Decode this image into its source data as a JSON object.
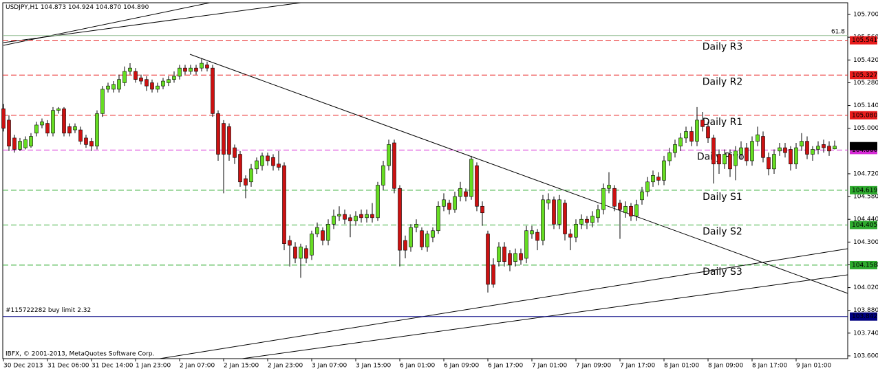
{
  "chart_data": {
    "type": "candlestick",
    "header": {
      "symbol": "USDJPY,H1",
      "quote": "104.873 104.924 104.870 104.890"
    },
    "footer": "IBFX, © 2001-2013, MetaQuotes Software Corp.",
    "up_color": "#66dd22",
    "down_color": "#cc1111",
    "ylim": [
      103.583,
      105.772
    ],
    "yticks": [
      {
        "value": 105.7,
        "label": "105.700"
      },
      {
        "value": 105.56,
        "label": "105.560"
      },
      {
        "value": 105.42,
        "label": "105.420"
      },
      {
        "value": 105.28,
        "label": "105.280"
      },
      {
        "value": 105.14,
        "label": "105.140"
      },
      {
        "value": 105.0,
        "label": "105.000"
      },
      {
        "value": 104.72,
        "label": "104.720"
      },
      {
        "value": 104.58,
        "label": "104.580"
      },
      {
        "value": 104.44,
        "label": "104.440"
      },
      {
        "value": 104.3,
        "label": "104.300"
      },
      {
        "value": 104.16,
        "label": "104.160"
      },
      {
        "value": 104.02,
        "label": "104.020"
      },
      {
        "value": 103.88,
        "label": "103.880"
      },
      {
        "value": 103.74,
        "label": "103.740"
      },
      {
        "value": 103.6,
        "label": "103.600"
      }
    ],
    "categories": [
      "30 Dec 2013",
      null,
      null,
      null,
      null,
      null,
      null,
      null,
      "31 Dec 06:00",
      null,
      null,
      null,
      null,
      null,
      null,
      null,
      "31 Dec 14:00",
      null,
      null,
      null,
      null,
      null,
      null,
      null,
      "1 Jan 23:00",
      null,
      null,
      null,
      null,
      null,
      null,
      null,
      "2 Jan 07:00",
      null,
      null,
      null,
      null,
      null,
      null,
      null,
      "2 Jan 15:00",
      null,
      null,
      null,
      null,
      null,
      null,
      null,
      "2 Jan 23:00",
      null,
      null,
      null,
      null,
      null,
      null,
      null,
      "3 Jan 07:00",
      null,
      null,
      null,
      null,
      null,
      null,
      null,
      "3 Jan 15:00",
      null,
      null,
      null,
      null,
      null,
      null,
      null,
      "6 Jan 01:00",
      null,
      null,
      null,
      null,
      null,
      null,
      null,
      "6 Jan 09:00",
      null,
      null,
      null,
      null,
      null,
      null,
      null,
      "6 Jan 17:00",
      null,
      null,
      null,
      null,
      null,
      null,
      null,
      "7 Jan 01:00",
      null,
      null,
      null,
      null,
      null,
      null,
      null,
      "7 Jan 09:00",
      null,
      null,
      null,
      null,
      null,
      null,
      null,
      "7 Jan 17:00",
      null,
      null,
      null,
      null,
      null,
      null,
      null,
      "8 Jan 01:00",
      null,
      null,
      null,
      null,
      null,
      null,
      null,
      "8 Jan 09:00",
      null,
      null,
      null,
      null,
      null,
      null,
      null,
      "8 Jan 17:00",
      null,
      null,
      null,
      null,
      null,
      null,
      null,
      "9 Jan 01:00",
      null,
      null,
      null,
      null,
      null,
      null,
      null
    ],
    "open": [
      105.12,
      105.05,
      104.94,
      104.87,
      104.88,
      104.89,
      104.97,
      105.02,
      105.03,
      104.97,
      105.11,
      105.12,
      105.01,
      104.99,
      104.99,
      104.94,
      104.92,
      104.89,
      105.09,
      105.24,
      105.24,
      105.24,
      105.28,
      105.35,
      105.35,
      105.31,
      105.3,
      105.28,
      105.24,
      105.26,
      105.28,
      105.3,
      105.32,
      105.37,
      105.35,
      105.37,
      105.37,
      105.39,
      105.37,
      105.09,
      105.03,
      105.01,
      104.88,
      104.84,
      104.69,
      104.67,
      104.75,
      104.77,
      104.83,
      104.82,
      104.78,
      104.77,
      104.31,
      104.27,
      104.2,
      104.26,
      104.22,
      104.35,
      104.37,
      104.31,
      104.41,
      104.46,
      104.47,
      104.45,
      104.43,
      104.47,
      104.45,
      104.47,
      104.45,
      104.65,
      104.77,
      104.91,
      104.63,
      104.31,
      104.27,
      104.39,
      104.37,
      104.27,
      104.33,
      104.37,
      104.52,
      104.54,
      104.5,
      104.58,
      104.61,
      104.58,
      104.77,
      104.52,
      104.35,
      104.16,
      104.18,
      104.27,
      104.23,
      104.18,
      104.23,
      104.2,
      104.35,
      104.36,
      104.31,
      104.54,
      104.56,
      104.41,
      104.54,
      104.35,
      104.33,
      104.41,
      104.44,
      104.42,
      104.45,
      104.5,
      104.63,
      104.63,
      104.54,
      104.48,
      104.52,
      104.46,
      104.56,
      104.61,
      104.67,
      104.7,
      104.68,
      104.8,
      104.85,
      104.89,
      104.94,
      104.98,
      104.92,
      105.05,
      105.01,
      104.94,
      104.84,
      104.78,
      104.84,
      104.77,
      104.84,
      104.88,
      104.8,
      104.92,
      104.95,
      104.82,
      104.75,
      104.86,
      104.88,
      104.87,
      104.78,
      104.89,
      104.92,
      104.84,
      104.87,
      104.9,
      104.89,
      104.873
    ],
    "high": [
      105.15,
      105.08,
      104.96,
      104.94,
      104.95,
      104.97,
      105.04,
      105.06,
      105.05,
      105.13,
      105.13,
      105.13,
      105.03,
      105.03,
      105.01,
      104.96,
      104.94,
      105.11,
      105.26,
      105.28,
      105.29,
      105.33,
      105.38,
      105.4,
      105.37,
      105.33,
      105.32,
      105.3,
      105.28,
      105.31,
      105.32,
      105.35,
      105.39,
      105.39,
      105.39,
      105.39,
      105.43,
      105.41,
      105.39,
      105.11,
      105.05,
      105.03,
      104.9,
      104.86,
      104.71,
      104.78,
      104.82,
      104.85,
      104.85,
      104.84,
      104.86,
      104.79,
      104.34,
      104.3,
      104.29,
      104.28,
      104.37,
      104.42,
      104.39,
      104.44,
      104.5,
      104.52,
      104.5,
      104.47,
      104.49,
      104.5,
      104.5,
      104.54,
      104.67,
      104.8,
      104.93,
      104.93,
      104.65,
      104.34,
      104.41,
      104.44,
      104.39,
      104.37,
      104.39,
      104.55,
      104.6,
      104.56,
      104.61,
      104.67,
      104.63,
      104.83,
      104.79,
      104.55,
      104.37,
      104.2,
      104.3,
      104.3,
      104.25,
      104.26,
      104.26,
      104.4,
      104.4,
      104.38,
      104.59,
      104.6,
      104.58,
      104.59,
      104.56,
      104.38,
      104.44,
      104.47,
      104.46,
      104.49,
      104.53,
      104.66,
      104.73,
      104.65,
      104.56,
      104.55,
      104.54,
      104.56,
      104.64,
      104.7,
      104.74,
      104.73,
      104.83,
      104.88,
      104.93,
      104.97,
      105.01,
      105.01,
      105.13,
      105.1,
      105.04,
      104.96,
      104.87,
      104.87,
      104.87,
      104.89,
      104.92,
      104.91,
      104.95,
      105.01,
      104.98,
      104.85,
      104.87,
      104.91,
      104.91,
      104.89,
      104.91,
      104.97,
      104.95,
      104.89,
      104.92,
      104.93,
      104.92,
      104.924
    ],
    "low": [
      104.98,
      104.86,
      104.85,
      104.86,
      104.87,
      104.88,
      104.95,
      105.0,
      104.95,
      104.95,
      105.09,
      104.95,
      104.95,
      104.97,
      104.9,
      104.88,
      104.86,
      104.87,
      105.07,
      105.22,
      105.22,
      105.22,
      105.26,
      105.33,
      105.28,
      105.27,
      105.23,
      105.22,
      105.22,
      105.24,
      105.26,
      105.28,
      105.3,
      105.33,
      105.33,
      105.33,
      105.35,
      105.35,
      105.07,
      104.8,
      104.6,
      104.8,
      104.78,
      104.64,
      104.57,
      104.64,
      104.72,
      104.74,
      104.77,
      104.74,
      104.74,
      104.25,
      104.15,
      104.17,
      104.08,
      104.17,
      104.19,
      104.33,
      104.28,
      104.28,
      104.38,
      104.43,
      104.41,
      104.33,
      104.4,
      104.42,
      104.42,
      104.42,
      104.43,
      104.62,
      104.74,
      104.6,
      104.15,
      104.2,
      104.24,
      104.36,
      104.25,
      104.24,
      104.3,
      104.35,
      104.49,
      104.47,
      104.48,
      104.55,
      104.55,
      104.56,
      104.49,
      104.4,
      103.99,
      104.02,
      104.15,
      104.15,
      104.12,
      104.15,
      104.16,
      104.17,
      104.32,
      104.25,
      104.28,
      104.5,
      104.38,
      104.38,
      104.31,
      104.25,
      104.3,
      104.38,
      104.38,
      104.39,
      104.42,
      104.47,
      104.6,
      104.49,
      104.32,
      104.45,
      104.43,
      104.43,
      104.53,
      104.58,
      104.64,
      104.65,
      104.65,
      104.77,
      104.82,
      104.86,
      104.91,
      104.89,
      104.89,
      104.98,
      104.91,
      104.66,
      104.72,
      104.75,
      104.7,
      104.68,
      104.81,
      104.77,
      104.77,
      104.89,
      104.79,
      104.71,
      104.72,
      104.83,
      104.82,
      104.74,
      104.75,
      104.86,
      104.81,
      104.8,
      104.84,
      104.85,
      104.83,
      104.87
    ],
    "close": [
      105.0,
      104.89,
      104.87,
      104.92,
      104.93,
      104.95,
      105.02,
      105.04,
      104.97,
      105.11,
      105.12,
      104.97,
      104.97,
      105.01,
      104.92,
      104.9,
      104.89,
      105.09,
      105.24,
      105.26,
      105.27,
      105.3,
      105.35,
      105.37,
      105.3,
      105.29,
      105.26,
      105.24,
      105.26,
      105.29,
      105.3,
      105.32,
      105.37,
      105.35,
      105.37,
      105.35,
      105.4,
      105.37,
      105.09,
      104.84,
      104.84,
      104.84,
      104.82,
      104.67,
      104.65,
      104.75,
      104.8,
      104.83,
      104.8,
      104.77,
      104.76,
      104.29,
      104.28,
      104.2,
      104.27,
      104.2,
      104.35,
      104.39,
      104.31,
      104.41,
      104.46,
      104.47,
      104.44,
      104.43,
      104.46,
      104.45,
      104.47,
      104.45,
      104.65,
      104.77,
      104.9,
      104.63,
      104.25,
      104.25,
      104.39,
      104.41,
      104.27,
      104.35,
      104.37,
      104.52,
      104.56,
      104.5,
      104.58,
      104.63,
      104.58,
      104.81,
      104.52,
      104.48,
      104.04,
      104.04,
      104.27,
      104.18,
      104.16,
      104.23,
      104.19,
      104.37,
      104.37,
      104.31,
      104.56,
      104.56,
      104.41,
      104.56,
      104.35,
      104.33,
      104.41,
      104.44,
      104.42,
      104.46,
      104.5,
      104.63,
      104.65,
      104.52,
      104.5,
      104.52,
      104.46,
      104.53,
      104.61,
      104.67,
      104.71,
      104.68,
      104.8,
      104.85,
      104.9,
      104.94,
      104.98,
      104.92,
      105.05,
      105.01,
      104.94,
      104.78,
      104.78,
      104.84,
      104.75,
      104.86,
      104.88,
      104.8,
      104.92,
      104.96,
      104.82,
      104.75,
      104.84,
      104.88,
      104.85,
      104.78,
      104.88,
      104.92,
      104.84,
      104.87,
      104.89,
      104.88,
      104.86,
      104.89
    ],
    "levels": [
      {
        "name": "Daily R3",
        "value": 105.541,
        "color": "#e81c1c",
        "text_color": "#e81c1c"
      },
      {
        "name": "Daily R2",
        "value": 105.327,
        "color": "#e81c1c",
        "text_color": "#e81c1c"
      },
      {
        "name": "Daily R1",
        "value": 105.08,
        "value_label": "105.080",
        "color": "#e81c1c",
        "text_color": "#e81c1c"
      },
      {
        "name": "Daily Pivot",
        "value": 104.866,
        "color": "#d62ad6",
        "text_color": "#d62ad6"
      },
      {
        "name": "Daily S1",
        "value": 104.619,
        "color": "#2eaa2e",
        "text_color": "#1b2a6b"
      },
      {
        "name": "Daily S2",
        "value": 104.405,
        "color": "#2eaa2e",
        "text_color": "#1b2a6b"
      },
      {
        "name": "Daily S3",
        "value": 104.158,
        "color": "#2eaa2e",
        "text_color": "#1b2a6b"
      }
    ],
    "order": {
      "label": "#115722282 buy limit 2.32",
      "value": 103.842,
      "color": "#000080"
    },
    "last_price": {
      "value": 104.89,
      "label": "104.890"
    },
    "fib": {
      "level": 61.8,
      "price": 105.57,
      "color": "#8fbc8f"
    }
  }
}
